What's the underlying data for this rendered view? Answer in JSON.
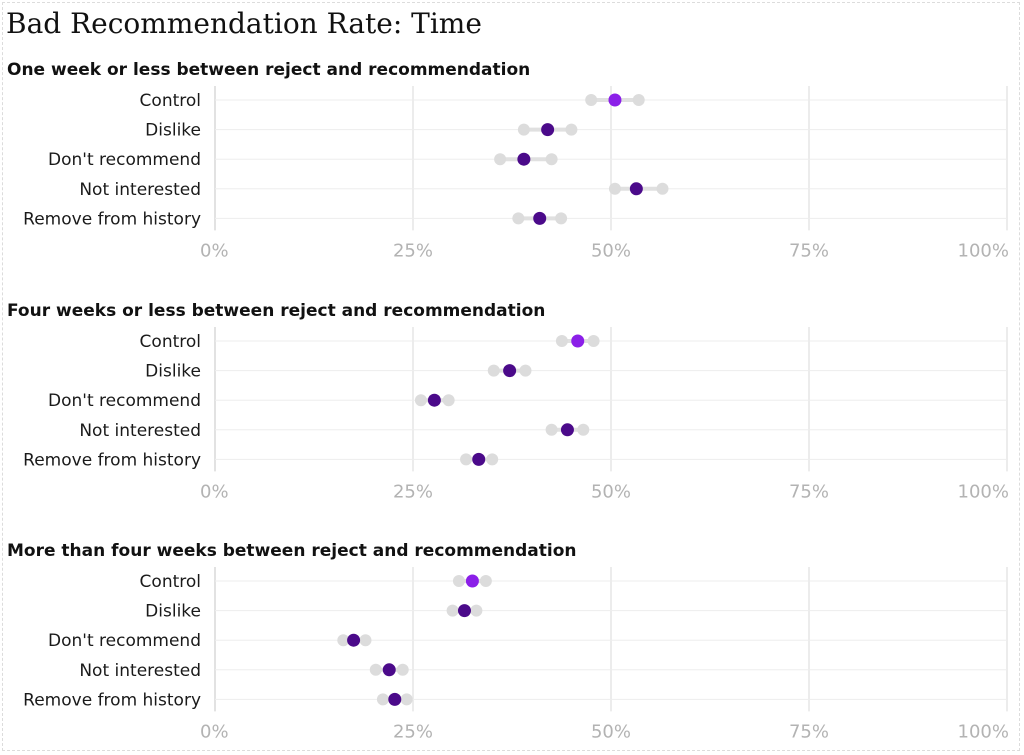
{
  "title": "Bad Recommendation Rate: Time",
  "colors": {
    "control": "#8b1fe8",
    "treatment": "#4b0a8a",
    "ci": "#dcdcdc"
  },
  "chart_data": [
    {
      "type": "scatter",
      "title": "One week or less between reject and recommendation",
      "categories": [
        "Control",
        "Dislike",
        "Don't recommend",
        "Not interested",
        "Remove from history"
      ],
      "values": [
        0.505,
        0.42,
        0.39,
        0.532,
        0.41
      ],
      "ci_low": [
        0.475,
        0.39,
        0.36,
        0.505,
        0.383
      ],
      "ci_high": [
        0.535,
        0.45,
        0.425,
        0.565,
        0.437
      ],
      "highlight": [
        true,
        false,
        false,
        false,
        false
      ],
      "xlim": [
        0,
        1
      ],
      "x_ticks": [
        "0%",
        "25%",
        "50%",
        "75%",
        "100%"
      ],
      "grid": true
    },
    {
      "type": "scatter",
      "title": "Four weeks or less between reject and recommendation",
      "categories": [
        "Control",
        "Dislike",
        "Don't recommend",
        "Not interested",
        "Remove from history"
      ],
      "values": [
        0.458,
        0.372,
        0.277,
        0.445,
        0.333
      ],
      "ci_low": [
        0.438,
        0.352,
        0.26,
        0.425,
        0.317
      ],
      "ci_high": [
        0.478,
        0.392,
        0.295,
        0.465,
        0.35
      ],
      "highlight": [
        true,
        false,
        false,
        false,
        false
      ],
      "xlim": [
        0,
        1
      ],
      "x_ticks": [
        "0%",
        "25%",
        "50%",
        "75%",
        "100%"
      ],
      "grid": true
    },
    {
      "type": "scatter",
      "title": "More than four weeks between reject and recommendation",
      "categories": [
        "Control",
        "Dislike",
        "Don't recommend",
        "Not interested",
        "Remove from history"
      ],
      "values": [
        0.325,
        0.315,
        0.175,
        0.22,
        0.227
      ],
      "ci_low": [
        0.308,
        0.3,
        0.162,
        0.203,
        0.212
      ],
      "ci_high": [
        0.342,
        0.33,
        0.19,
        0.237,
        0.242
      ],
      "highlight": [
        true,
        false,
        false,
        false,
        false
      ],
      "xlim": [
        0,
        1
      ],
      "x_ticks": [
        "0%",
        "25%",
        "50%",
        "75%",
        "100%"
      ],
      "grid": true
    }
  ]
}
